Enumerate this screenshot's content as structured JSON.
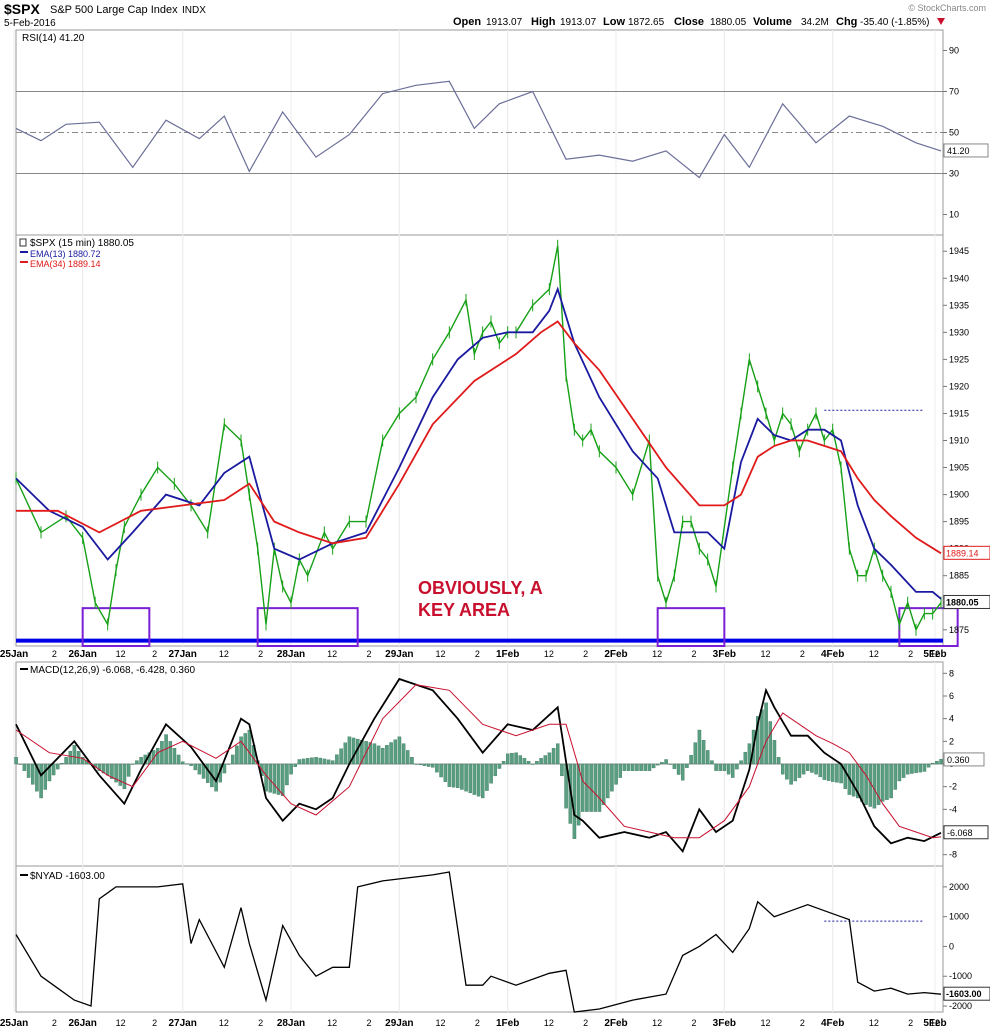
{
  "header": {
    "symbol": "$SPX",
    "name": "S&P 500 Large Cap Index",
    "exchange": "INDX",
    "date": "5-Feb-2016",
    "open_label": "Open",
    "open": "1913.07",
    "high_label": "High",
    "high": "1913.07",
    "low_label": "Low",
    "low": "1872.65",
    "close_label": "Close",
    "close": "1880.05",
    "volume_label": "Volume",
    "volume": "34.2M",
    "chg_label": "Chg",
    "chg": "-35.40 (-1.85%)",
    "trend_icon": "down-arrow-icon",
    "watermark": "© StockCharts.com"
  },
  "colors": {
    "price_up": "#16a016",
    "ema13": "#1a1aa0",
    "ema34": "#e01a1a",
    "rsi_line": "#6b6f98",
    "macd_line": "#000000",
    "macd_signal": "#c8102e",
    "histogram": "#5a9e82",
    "support": "#0000e6",
    "box": "#7a1fd6",
    "annotation": "#c8102e",
    "nyad_line": "#000000"
  },
  "annotation": {
    "line1": "OBVIOUSLY, A",
    "line2": "KEY AREA"
  },
  "chart_data": [
    {
      "type": "line",
      "title": "RSI(14) 41.20",
      "ylim": [
        0,
        100
      ],
      "yticks": [
        "10",
        "30",
        "50",
        "70",
        "90"
      ],
      "last_value": "41.20",
      "reference_lines": [
        30,
        50,
        70
      ],
      "x": [
        0,
        3,
        6,
        10,
        14,
        18,
        22,
        25,
        28,
        32,
        36,
        40,
        44,
        48,
        52,
        55,
        58,
        62,
        66,
        70,
        74,
        78,
        82,
        85,
        88,
        92,
        96,
        100,
        104,
        108,
        111
      ],
      "y": [
        52,
        46,
        54,
        55,
        33,
        56,
        47,
        58,
        31,
        60,
        38,
        49,
        69,
        73,
        75,
        52,
        64,
        70,
        37,
        39,
        36,
        41,
        28,
        49,
        33,
        64,
        45,
        58,
        53,
        45,
        41
      ]
    },
    {
      "type": "line",
      "title": "$SPX (15 min) 1880.05",
      "legend": [
        "EMA(13) 1880.72",
        "EMA(34) 1889.14"
      ],
      "ylim": [
        1872,
        1948
      ],
      "yticks": [
        "1875",
        "1880",
        "1885",
        "1890",
        "1895",
        "1900",
        "1905",
        "1910",
        "1915",
        "1920",
        "1925",
        "1930",
        "1935",
        "1940",
        "1945"
      ],
      "support_level": 1873,
      "resistance_level": 1915.6,
      "last_price_label": "1880.05",
      "last_ema34_label": "1889.14",
      "xticks": [
        "25Jan",
        "2",
        "26Jan",
        "12",
        "2",
        "27Jan",
        "12",
        "2",
        "28Jan",
        "12",
        "2",
        "29Jan",
        "12",
        "2",
        "1Feb",
        "12",
        "2",
        "2Feb",
        "12",
        "2",
        "3Feb",
        "12",
        "2",
        "4Feb",
        "12",
        "2",
        "5Feb",
        "12",
        "2",
        "8Feb",
        "12"
      ],
      "highlight_boxes": [
        [
          8,
          16
        ],
        [
          29,
          41
        ],
        [
          77,
          85
        ],
        [
          106,
          113
        ]
      ],
      "series": [
        {
          "name": "$SPX",
          "x": [
            0,
            3,
            6,
            8,
            9.5,
            11,
            12,
            13,
            15,
            17,
            19,
            21,
            23,
            25,
            27,
            28,
            29,
            30,
            31,
            32,
            33,
            34,
            35,
            37,
            38,
            40,
            42,
            44,
            46,
            48,
            50,
            52,
            54,
            55,
            56,
            57,
            58,
            59,
            60,
            62,
            64,
            65,
            66,
            67,
            68,
            69,
            70,
            72,
            74,
            76,
            77,
            78,
            79,
            80,
            81,
            82,
            83,
            84,
            86,
            87,
            88,
            89,
            90,
            91,
            92,
            93,
            94,
            95,
            96,
            97,
            98,
            99,
            100,
            101,
            102,
            103,
            104,
            105,
            106,
            107,
            108,
            109,
            110,
            111
          ],
          "y": [
            1903,
            1893,
            1896,
            1892,
            1880,
            1876,
            1886,
            1894,
            1900,
            1905,
            1902,
            1898,
            1893,
            1913,
            1910,
            1900,
            1890,
            1876,
            1890,
            1883,
            1880,
            1888,
            1885,
            1893,
            1890,
            1895,
            1895,
            1910,
            1915,
            1918,
            1925,
            1930,
            1936,
            1926,
            1930,
            1932,
            1928,
            1930,
            1930,
            1935,
            1938,
            1946,
            1922,
            1912,
            1910,
            1912,
            1908,
            1905,
            1900,
            1910,
            1885,
            1880,
            1885,
            1895,
            1895,
            1890,
            1888,
            1883,
            1905,
            1915,
            1925,
            1920,
            1915,
            1910,
            1915,
            1913,
            1908,
            1912,
            1915,
            1910,
            1912,
            1905,
            1890,
            1885,
            1885,
            1890,
            1885,
            1882,
            1876,
            1880,
            1875,
            1878,
            1878,
            1880
          ]
        },
        {
          "name": "EMA(13)",
          "x": [
            0,
            4,
            8,
            11,
            14,
            18,
            22,
            25,
            28,
            31,
            34,
            38,
            42,
            46,
            50,
            53,
            56,
            59,
            62,
            64,
            65,
            67,
            70,
            74,
            77,
            79,
            81,
            83,
            85,
            87,
            89,
            91,
            93,
            95,
            97,
            99,
            101,
            103,
            105,
            108,
            110,
            111
          ],
          "y": [
            1903,
            1897,
            1894,
            1888,
            1893,
            1900,
            1898,
            1904,
            1907,
            1890,
            1888,
            1891,
            1893,
            1905,
            1918,
            1925,
            1929,
            1930,
            1930,
            1934,
            1938,
            1928,
            1918,
            1908,
            1903,
            1893,
            1893,
            1893,
            1890,
            1906,
            1914,
            1911,
            1910,
            1912,
            1912,
            1910,
            1898,
            1890,
            1887,
            1882,
            1882,
            1880.72
          ]
        },
        {
          "name": "EMA(34)",
          "x": [
            0,
            5,
            10,
            15,
            20,
            25,
            28,
            31,
            34,
            38,
            42,
            46,
            50,
            55,
            60,
            63,
            65,
            67,
            70,
            74,
            78,
            82,
            85,
            87,
            89,
            91,
            93,
            95,
            97,
            99,
            101,
            103,
            105,
            108,
            111
          ],
          "y": [
            1897,
            1897,
            1893,
            1897,
            1898,
            1899,
            1902,
            1895,
            1893,
            1891,
            1892,
            1902,
            1913,
            1921,
            1926,
            1930,
            1932,
            1928,
            1923,
            1914,
            1905,
            1898,
            1898,
            1900,
            1907,
            1909,
            1910,
            1910,
            1909,
            1908,
            1903,
            1899,
            1896,
            1892,
            1889.14
          ]
        }
      ]
    },
    {
      "type": "line",
      "title": "MACD(12,26,9) -6.068, -6.428, 0.360",
      "ylim": [
        -9,
        9
      ],
      "yticks": [
        "8",
        "6",
        "4",
        "2",
        "0",
        "-2",
        "-4",
        "-6",
        "-8"
      ],
      "last_macd": "-6.068",
      "last_signal": "-6.428",
      "last_hist": "0.360",
      "series": [
        {
          "name": "MACD",
          "x": [
            0,
            3,
            7,
            10,
            13,
            15,
            18,
            21,
            24,
            27,
            28,
            30,
            32,
            34,
            36,
            38,
            40,
            43,
            46,
            50,
            53,
            56,
            59,
            62,
            65,
            67,
            68,
            70,
            73,
            76,
            78,
            80,
            82,
            84,
            86,
            88,
            89,
            90,
            91,
            93,
            95,
            97,
            99,
            101,
            103,
            105,
            107,
            109,
            111
          ],
          "y": [
            3.5,
            -1,
            2,
            -1,
            -3.5,
            -0.5,
            3.5,
            1.5,
            -1.5,
            4,
            3.5,
            -3,
            -5,
            -3.5,
            -4,
            -3,
            0,
            4,
            7.5,
            6.5,
            4,
            1,
            3.5,
            3,
            5,
            -4.5,
            -5,
            -6.5,
            -6,
            -6.5,
            -6,
            -7.7,
            -4,
            -6,
            -5,
            -0.5,
            3.5,
            6.5,
            5,
            2.5,
            2.5,
            1,
            0,
            -2.5,
            -5.5,
            -7,
            -6.5,
            -6.8,
            -6.068
          ]
        },
        {
          "name": "Signal",
          "x": [
            0,
            4,
            8,
            11,
            14,
            17,
            20,
            24,
            27,
            30,
            33,
            36,
            40,
            44,
            48,
            52,
            56,
            60,
            64,
            66,
            68,
            70,
            73,
            76,
            79,
            82,
            85,
            88,
            90,
            92,
            94,
            96,
            98,
            100,
            102,
            104,
            106,
            108,
            110,
            111
          ],
          "y": [
            3,
            1,
            0.5,
            -1,
            -2,
            1,
            2,
            0.5,
            2,
            -1,
            -3.5,
            -4.5,
            -2,
            4,
            7,
            6.5,
            3.5,
            2.5,
            3.5,
            3.5,
            -1.5,
            -3,
            -5.5,
            -6,
            -6.5,
            -6.5,
            -5,
            -2,
            2,
            4.5,
            3.5,
            2.5,
            1.8,
            1,
            -1,
            -3.5,
            -5.5,
            -6,
            -6.5,
            -6.428
          ]
        }
      ]
    },
    {
      "type": "line",
      "title": "$NYAD -1603.00",
      "ylim": [
        -2200,
        2700
      ],
      "yticks": [
        "2000",
        "1000",
        "0",
        "-1000",
        "-2000"
      ],
      "last_value": "-1603.00",
      "reference_level": 850,
      "x": [
        0,
        3,
        5,
        7,
        9,
        10,
        12,
        14,
        17,
        20,
        21,
        22,
        25,
        27,
        28,
        30,
        32,
        34,
        36,
        38,
        40,
        41,
        44,
        47,
        50,
        52,
        54,
        56,
        57,
        60,
        64,
        66,
        67,
        70,
        74,
        78,
        80,
        82,
        84,
        86,
        88,
        89,
        91,
        93,
        95,
        97,
        99,
        100,
        101,
        103,
        105,
        107,
        109,
        111
      ],
      "y": [
        400,
        -1000,
        -1400,
        -1800,
        -2000,
        1600,
        2000,
        2000,
        2000,
        2100,
        100,
        900,
        -700,
        1300,
        100,
        -1800,
        700,
        -300,
        -1000,
        -700,
        -700,
        2000,
        2200,
        2300,
        2400,
        2500,
        -1300,
        -1300,
        -1000,
        -1300,
        -900,
        -800,
        -2200,
        -2100,
        -1800,
        -1600,
        -300,
        0,
        400,
        -200,
        600,
        1500,
        1000,
        1200,
        1400,
        1200,
        1000,
        900,
        -1200,
        -1500,
        -1400,
        -1600,
        -1550,
        -1603
      ]
    }
  ]
}
